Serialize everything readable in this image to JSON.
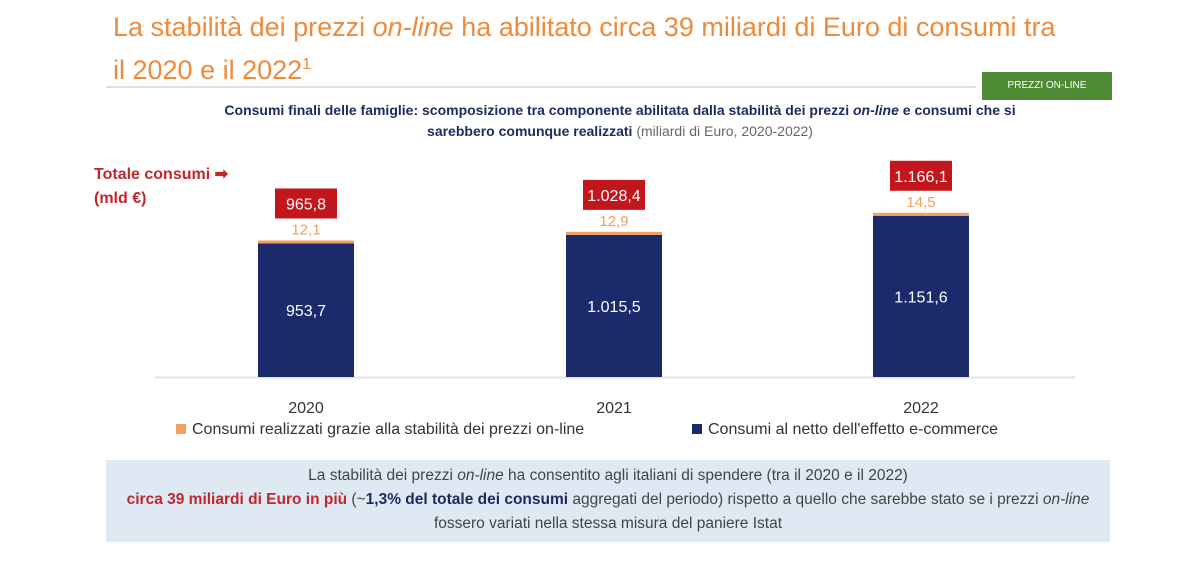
{
  "title": {
    "part1": "La stabilità dei prezzi ",
    "italic": "on-line",
    "part2": " ha abilitato circa 39 miliardi di Euro di consumi tra il 2020 e il 2022",
    "sup": "1"
  },
  "tag": "PREZZI ON-LINE",
  "subtitle": {
    "b1": "Consumi finali delle famiglie: scomposizione tra componente abilitata dalla stabilità dei prezzi ",
    "i": "on-line",
    "b2": " e consumi che si sarebbero comunque realizzati",
    "n": " (miliardi di Euro, 2020-2022)"
  },
  "totals_label": {
    "line1": "Totale consumi ➡",
    "line2": "(mld €)"
  },
  "colors": {
    "online": "#f0a060",
    "net": "#1b2a6b",
    "total_box": "#c0161c"
  },
  "chart_data": {
    "type": "bar",
    "stacked": true,
    "categories": [
      "2020",
      "2021",
      "2022"
    ],
    "series": [
      {
        "name": "Consumi al netto dell'effetto e-commerce",
        "values": [
          953.7,
          1015.5,
          1151.6
        ],
        "labels": [
          "953,7",
          "1.015,5",
          "1.151,6"
        ]
      },
      {
        "name": "Consumi realizzati grazie alla stabilità dei prezzi on-line",
        "values": [
          12.1,
          12.9,
          14.5
        ],
        "labels": [
          "12,1",
          "12,9",
          "14,5"
        ]
      }
    ],
    "totals": [
      "965,8",
      "1.028,4",
      "1.166,1"
    ],
    "ylim": [
      0,
      1200
    ],
    "legend": "bottom"
  },
  "note": {
    "l1a": "La stabilità dei prezzi ",
    "l1i": "on-line",
    "l1b": " ha consentito agli italiani di spendere (tra il 2020 e il 2022)",
    "red": "circa 39 miliardi di Euro in più",
    "mid1": " (~",
    "dark": "1,3% del totale dei consumi",
    "mid2": " aggregati del periodo) rispetto a quello che sarebbe stato se i prezzi ",
    "i2": "on-line",
    "end": " fossero variati nella stessa misura del paniere Istat"
  }
}
